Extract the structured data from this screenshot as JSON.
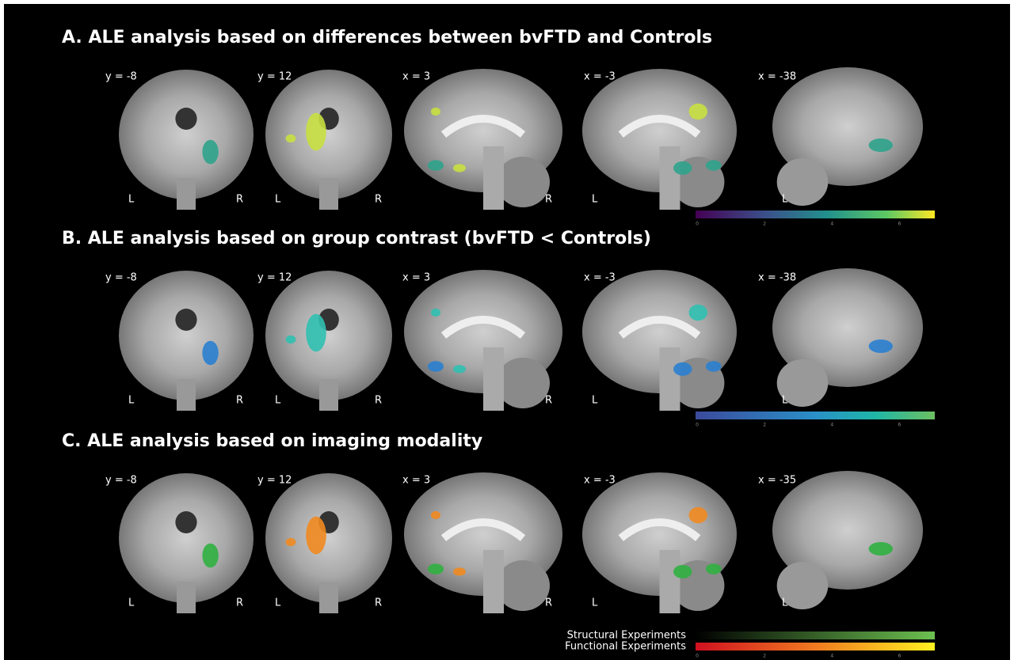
{
  "panels": [
    {
      "title": "A.  ALE analysis based on differences between bvFTD and Controls",
      "slices": [
        {
          "label": "y = -8",
          "left": "L",
          "right": "R"
        },
        {
          "label": "y = 12",
          "left": "L",
          "right": "R"
        },
        {
          "label": "x = 3",
          "right": "R"
        },
        {
          "label": "x = -3",
          "left": "L"
        },
        {
          "label": "x = -38",
          "left": "L"
        }
      ],
      "colorbars": [
        {
          "ticks": [
            0,
            2,
            4,
            6
          ]
        }
      ]
    },
    {
      "title": "B.  ALE analysis based on group contrast (bvFTD < Controls)",
      "slices": [
        {
          "label": "y = -8",
          "left": "L",
          "right": "R"
        },
        {
          "label": "y = 12",
          "left": "L",
          "right": "R"
        },
        {
          "label": "x = 3",
          "right": "R"
        },
        {
          "label": "x = -3",
          "left": "L"
        },
        {
          "label": "x = -38",
          "left": "L"
        }
      ],
      "colorbars": [
        {
          "ticks": [
            0,
            2,
            4,
            6
          ]
        }
      ]
    },
    {
      "title": "C.  ALE analysis based on imaging modality",
      "slices": [
        {
          "label": "y = -8",
          "left": "L",
          "right": "R"
        },
        {
          "label": "y = 12",
          "left": "L",
          "right": "R"
        },
        {
          "label": "x = 3",
          "right": "R"
        },
        {
          "label": "x = -3",
          "left": "L"
        },
        {
          "label": "x = -35",
          "left": "L"
        }
      ],
      "colorbars": [
        {
          "label": "Structural Experiments"
        },
        {
          "label": "Functional Experiments",
          "ticks": [
            0,
            2,
            4,
            6
          ]
        }
      ]
    }
  ]
}
